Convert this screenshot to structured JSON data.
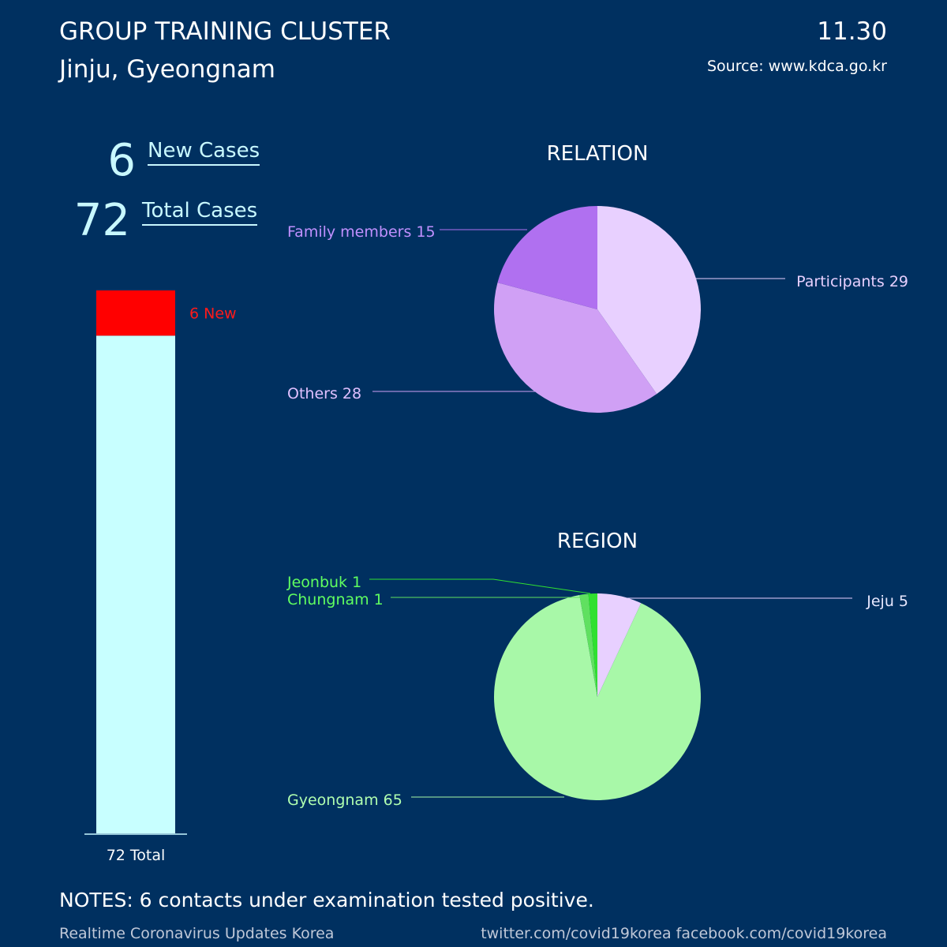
{
  "header": {
    "title": "GROUP TRAINING CLUSTER",
    "subtitle": "Jinju, Gyeongnam",
    "date": "11.30",
    "source": "Source: www.kdca.go.kr"
  },
  "stats": {
    "new_value": "6",
    "new_label": "New Cases",
    "total_value": "72",
    "total_label": "Total Cases"
  },
  "notes": "NOTES: 6 contacts under examination tested positive.",
  "footer": {
    "left": "Realtime Coronavirus Updates Korea",
    "right": "twitter.com/covid19korea  facebook.com/covid19korea"
  },
  "colors": {
    "background": "#003060",
    "accent": "#c8f8ff",
    "new": "#ff0000"
  },
  "chart_data": [
    {
      "type": "bar",
      "stacked": true,
      "ylim": [
        0,
        72
      ],
      "total": 72,
      "series": [
        {
          "values": [
            66
          ],
          "color": "#c8ffff"
        },
        {
          "values": [
            6
          ],
          "color": "#ff0000"
        }
      ],
      "labels": {
        "new": "6 New",
        "total": "72 Total"
      }
    },
    {
      "type": "pie",
      "title": "RELATION",
      "slices": [
        {
          "label": "Participants 29",
          "value": 29,
          "color": "#e8d0ff",
          "text_color": "#e8d0ff"
        },
        {
          "label": "Others 28",
          "value": 28,
          "color": "#d0a0f5",
          "text_color": "#e0c0ff"
        },
        {
          "label": "Family members 15",
          "value": 15,
          "color": "#b070f0",
          "text_color": "#c090ff"
        }
      ]
    },
    {
      "type": "pie",
      "title": "REGION",
      "slices": [
        {
          "label": "Jeju 5",
          "value": 5,
          "color": "#e8d0ff",
          "text_color": "#e8e8ff"
        },
        {
          "label": "Gyeongnam 65",
          "value": 65,
          "color": "#a8f8a8",
          "text_color": "#b0ffb0"
        },
        {
          "label": "Chungnam 1",
          "value": 1,
          "color": "#60e060",
          "text_color": "#60ff60"
        },
        {
          "label": "Jeonbuk 1",
          "value": 1,
          "color": "#30e030",
          "text_color": "#60ff60"
        }
      ]
    }
  ]
}
